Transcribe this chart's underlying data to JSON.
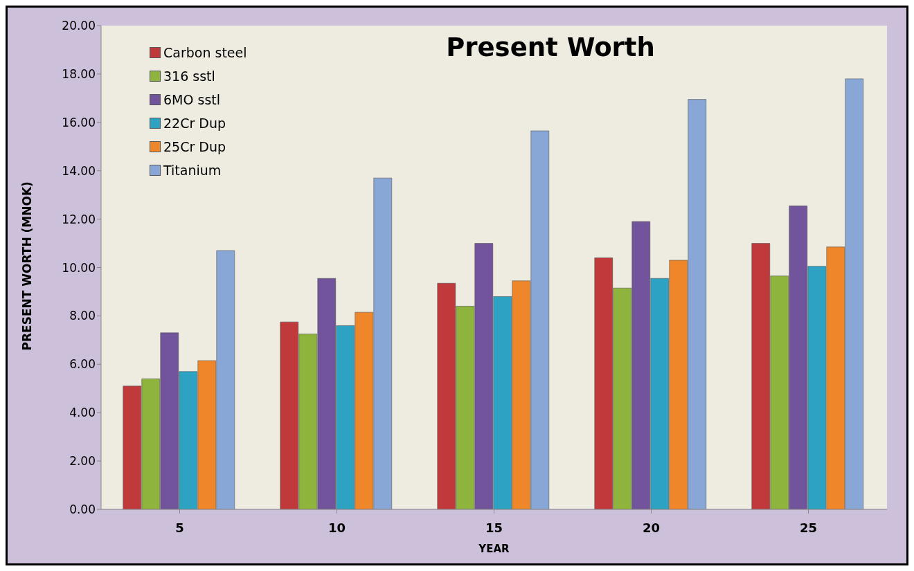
{
  "chart_data": {
    "type": "bar",
    "title": "Present Worth",
    "xlabel": "YEAR",
    "ylabel": "PRESENT WORTH (MNOK)",
    "categories": [
      "5",
      "10",
      "15",
      "20",
      "25"
    ],
    "series": [
      {
        "name": "Carbon steel",
        "color": "#c0393b",
        "values": [
          5.1,
          7.75,
          9.35,
          10.4,
          11.0
        ]
      },
      {
        "name": "316 sstl",
        "color": "#8fb43d",
        "values": [
          5.4,
          7.25,
          8.4,
          9.15,
          9.65
        ]
      },
      {
        "name": "6MO sstl",
        "color": "#71549b",
        "values": [
          7.3,
          9.55,
          11.0,
          11.9,
          12.55
        ]
      },
      {
        "name": "22Cr Dup",
        "color": "#2ea2c2",
        "values": [
          5.7,
          7.6,
          8.8,
          9.55,
          10.05
        ]
      },
      {
        "name": "25Cr Dup",
        "color": "#f0862a",
        "values": [
          6.15,
          8.15,
          9.45,
          10.3,
          10.85
        ]
      },
      {
        "name": "Titanium",
        "color": "#88a6d6",
        "values": [
          10.7,
          13.7,
          15.65,
          16.95,
          17.8
        ]
      }
    ],
    "ylim": [
      0,
      20
    ],
    "yticks": [
      {
        "value": 0,
        "label": "0.00"
      },
      {
        "value": 2,
        "label": "2.00"
      },
      {
        "value": 4,
        "label": "4.00"
      },
      {
        "value": 6,
        "label": "6.00"
      },
      {
        "value": 8,
        "label": "8.00"
      },
      {
        "value": 10,
        "label": "10.00"
      },
      {
        "value": 12,
        "label": "12.00"
      },
      {
        "value": 14,
        "label": "14.00"
      },
      {
        "value": 16,
        "label": "16.00"
      },
      {
        "value": 18,
        "label": "18.00"
      },
      {
        "value": 20,
        "label": "20.00"
      }
    ],
    "grid": false,
    "legend": "top left"
  }
}
